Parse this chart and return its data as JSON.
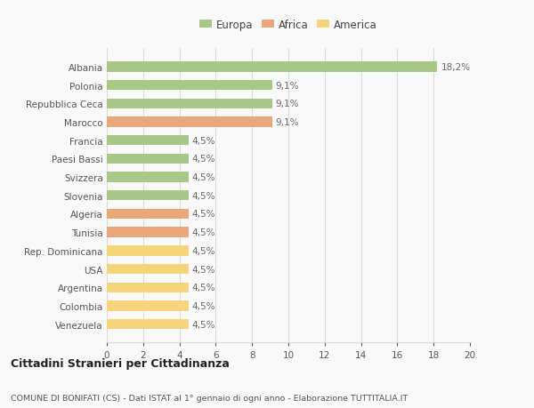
{
  "categories": [
    "Venezuela",
    "Colombia",
    "Argentina",
    "USA",
    "Rep. Dominicana",
    "Tunisia",
    "Algeria",
    "Slovenia",
    "Svizzera",
    "Paesi Bassi",
    "Francia",
    "Marocco",
    "Repubblica Ceca",
    "Polonia",
    "Albania"
  ],
  "values": [
    4.5,
    4.5,
    4.5,
    4.5,
    4.5,
    4.5,
    4.5,
    4.5,
    4.5,
    4.5,
    4.5,
    9.1,
    9.1,
    9.1,
    18.2
  ],
  "colors": [
    "#f5d47a",
    "#f5d47a",
    "#f5d47a",
    "#f5d47a",
    "#f5d47a",
    "#e8a87c",
    "#e8a87c",
    "#a8c887",
    "#a8c887",
    "#a8c887",
    "#a8c887",
    "#e8a87c",
    "#a8c887",
    "#a8c887",
    "#a8c887"
  ],
  "labels": [
    "4,5%",
    "4,5%",
    "4,5%",
    "4,5%",
    "4,5%",
    "4,5%",
    "4,5%",
    "4,5%",
    "4,5%",
    "4,5%",
    "4,5%",
    "9,1%",
    "9,1%",
    "9,1%",
    "18,2%"
  ],
  "continent_colors": {
    "Europa": "#a8c887",
    "Africa": "#e8a87c",
    "America": "#f5d47a"
  },
  "xlim": [
    0,
    20
  ],
  "xticks": [
    0,
    2,
    4,
    6,
    8,
    10,
    12,
    14,
    16,
    18,
    20
  ],
  "title": "Cittadini Stranieri per Cittadinanza",
  "subtitle": "COMUNE DI BONIFATI (CS) - Dati ISTAT al 1° gennaio di ogni anno - Elaborazione TUTTITALIA.IT",
  "bg_color": "#f9f9f9",
  "grid_color": "#d8d8d8",
  "bar_height": 0.55,
  "label_fontsize": 7.5,
  "ytick_fontsize": 7.5,
  "xtick_fontsize": 7.5,
  "legend_fontsize": 8.5,
  "title_fontsize": 9.0,
  "subtitle_fontsize": 6.8
}
